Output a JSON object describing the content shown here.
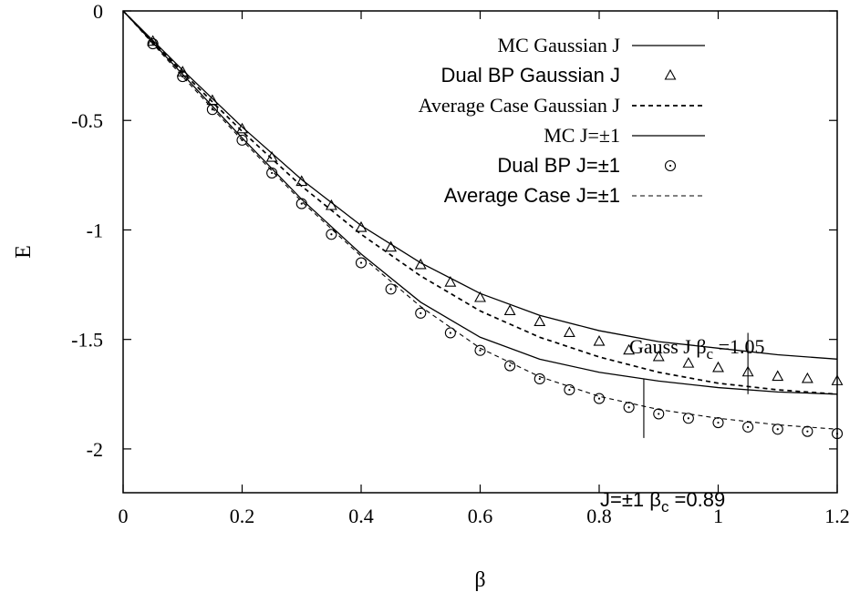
{
  "chart_data": {
    "type": "line",
    "xlabel": "β",
    "ylabel": "E",
    "xlim": [
      0,
      1.2
    ],
    "ylim": [
      -2.2,
      0
    ],
    "xticks": [
      0,
      0.2,
      0.4,
      0.6,
      0.8,
      1,
      1.2
    ],
    "xtick_labels": [
      "0",
      "0.2",
      "0.4",
      "0.6",
      "0.8",
      "1",
      "1.2"
    ],
    "yticks": [
      0,
      -0.5,
      -1,
      -1.5,
      -2
    ],
    "ytick_labels": [
      "0",
      "-0.5",
      "-1",
      "-1.5",
      "-2"
    ],
    "grid": false,
    "legend": "top-right",
    "series": [
      {
        "name": "MC Gaussian J",
        "style": "solid",
        "color": "#000000",
        "x": [
          0,
          0.1,
          0.2,
          0.3,
          0.4,
          0.5,
          0.6,
          0.7,
          0.8,
          0.9,
          1.0,
          1.1,
          1.2
        ],
        "y": [
          0,
          -0.27,
          -0.53,
          -0.77,
          -0.98,
          -1.15,
          -1.29,
          -1.39,
          -1.46,
          -1.51,
          -1.54,
          -1.57,
          -1.59
        ]
      },
      {
        "name": "Dual BP Gaussian J",
        "style": "marker",
        "marker": "triangle",
        "color": "#000000",
        "x": [
          0.05,
          0.1,
          0.15,
          0.2,
          0.25,
          0.3,
          0.35,
          0.4,
          0.45,
          0.5,
          0.55,
          0.6,
          0.65,
          0.7,
          0.75,
          0.8,
          0.85,
          0.9,
          0.95,
          1.0,
          1.05,
          1.1,
          1.15,
          1.2
        ],
        "y": [
          -0.14,
          -0.28,
          -0.41,
          -0.54,
          -0.67,
          -0.78,
          -0.89,
          -0.99,
          -1.08,
          -1.16,
          -1.24,
          -1.31,
          -1.37,
          -1.42,
          -1.47,
          -1.51,
          -1.55,
          -1.58,
          -1.61,
          -1.63,
          -1.65,
          -1.67,
          -1.68,
          -1.69
        ]
      },
      {
        "name": "Average Case Gaussian J",
        "style": "dashed",
        "color": "#000000",
        "x": [
          0,
          0.1,
          0.2,
          0.3,
          0.4,
          0.5,
          0.6,
          0.7,
          0.8,
          0.9,
          1.0,
          1.1,
          1.2
        ],
        "y": [
          0,
          -0.28,
          -0.55,
          -0.8,
          -1.02,
          -1.21,
          -1.37,
          -1.49,
          -1.58,
          -1.65,
          -1.7,
          -1.73,
          -1.75
        ]
      },
      {
        "name": "MC J=±1",
        "style": "solid",
        "color": "#000000",
        "x": [
          0,
          0.1,
          0.2,
          0.3,
          0.4,
          0.5,
          0.6,
          0.7,
          0.8,
          0.9,
          1.0,
          1.1,
          1.2
        ],
        "y": [
          0,
          -0.29,
          -0.58,
          -0.86,
          -1.11,
          -1.33,
          -1.49,
          -1.59,
          -1.65,
          -1.69,
          -1.72,
          -1.74,
          -1.75
        ]
      },
      {
        "name": "Dual BP J=±1",
        "style": "marker",
        "marker": "circle-dot",
        "color": "#000000",
        "x": [
          0.05,
          0.1,
          0.15,
          0.2,
          0.25,
          0.3,
          0.35,
          0.4,
          0.45,
          0.5,
          0.55,
          0.6,
          0.65,
          0.7,
          0.75,
          0.8,
          0.85,
          0.9,
          0.95,
          1.0,
          1.05,
          1.1,
          1.15,
          1.2
        ],
        "y": [
          -0.15,
          -0.3,
          -0.45,
          -0.59,
          -0.74,
          -0.88,
          -1.02,
          -1.15,
          -1.27,
          -1.38,
          -1.47,
          -1.55,
          -1.62,
          -1.68,
          -1.73,
          -1.77,
          -1.81,
          -1.84,
          -1.86,
          -1.88,
          -1.9,
          -1.91,
          -1.92,
          -1.93
        ]
      },
      {
        "name": "Average Case J=±1",
        "style": "dashed-thin",
        "color": "#000000",
        "x": [
          0,
          0.1,
          0.2,
          0.3,
          0.4,
          0.5,
          0.6,
          0.7,
          0.8,
          0.9,
          1.0,
          1.1,
          1.2
        ],
        "y": [
          0,
          -0.3,
          -0.59,
          -0.87,
          -1.12,
          -1.35,
          -1.54,
          -1.67,
          -1.76,
          -1.82,
          -1.86,
          -1.89,
          -1.91
        ]
      }
    ],
    "annotations": [
      {
        "id": "gauss",
        "prefix": "Gauss J β",
        "sub": "c",
        "suffix": " =1.05",
        "x": 1.05,
        "y_from": -1.75,
        "y_to": -1.47
      },
      {
        "id": "pm",
        "prefix": "J=±1 β",
        "sub": "c",
        "suffix": " =0.89",
        "x": 0.875,
        "y_from": -1.95,
        "y_to": -1.68
      }
    ]
  }
}
